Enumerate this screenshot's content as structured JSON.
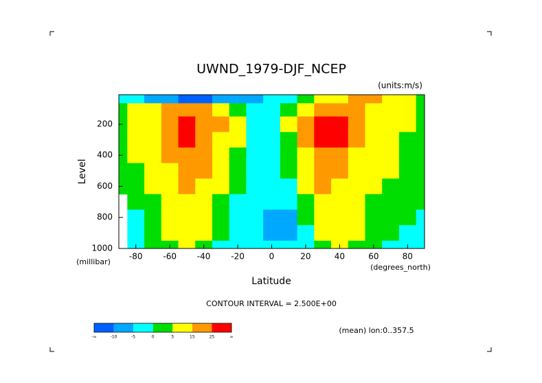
{
  "chart_data": {
    "type": "contour",
    "title": "UWND_1979-DJF_NCEP",
    "units_note": "(units:m/s)",
    "y_label": "Level",
    "y_units": "(millibar)",
    "x_label": "Latitude",
    "x_units": "(degrees_north)",
    "contour_note": "CONTOUR INTERVAL = 2.500E+00",
    "footnote": "(mean) lon:0..357.5",
    "xlim": [
      -90,
      90
    ],
    "ylim": [
      1000,
      10
    ],
    "xticks": [
      -80,
      -60,
      -40,
      -20,
      0,
      20,
      40,
      60,
      80
    ],
    "yticks": [
      200,
      400,
      600,
      800,
      1000
    ],
    "x": [
      -90,
      -80,
      -70,
      -60,
      -50,
      -40,
      -30,
      -20,
      -10,
      0,
      10,
      20,
      30,
      40,
      50,
      60,
      70,
      80,
      90
    ],
    "y": [
      30,
      100,
      200,
      300,
      400,
      500,
      600,
      700,
      800,
      900,
      1000
    ],
    "z": [
      [
        -2,
        -5,
        -8,
        -10,
        -12,
        -12,
        -10,
        -10,
        -8,
        -5,
        -2,
        0,
        5,
        10,
        15,
        15,
        10,
        5,
        2
      ],
      [
        2,
        5,
        10,
        15,
        18,
        15,
        10,
        2,
        -3,
        -2,
        2,
        10,
        20,
        18,
        15,
        10,
        8,
        5,
        2
      ],
      [
        3,
        6,
        12,
        20,
        27,
        22,
        15,
        5,
        -2,
        -1,
        5,
        18,
        32,
        28,
        18,
        12,
        8,
        5,
        2
      ],
      [
        3,
        6,
        12,
        20,
        27,
        22,
        14,
        5,
        -1,
        -1,
        4,
        16,
        30,
        26,
        17,
        11,
        7,
        4,
        2
      ],
      [
        2,
        5,
        10,
        17,
        23,
        19,
        11,
        3,
        -2,
        -2,
        2,
        12,
        24,
        21,
        14,
        9,
        6,
        3,
        2
      ],
      [
        2,
        4,
        8,
        14,
        19,
        15,
        8,
        1,
        -3,
        -3,
        0,
        9,
        19,
        17,
        12,
        8,
        5,
        3,
        1
      ],
      [
        1,
        3,
        6,
        11,
        16,
        12,
        5,
        0,
        -3,
        -4,
        -2,
        6,
        15,
        14,
        10,
        6,
        4,
        2,
        1
      ],
      [
        null,
        1,
        4,
        9,
        13,
        9,
        3,
        -1,
        -4,
        -5,
        -4,
        3,
        11,
        11,
        8,
        4,
        2,
        1,
        0
      ],
      [
        null,
        -1,
        2,
        7,
        10,
        7,
        1,
        -2,
        -5,
        -6,
        -6,
        0,
        8,
        9,
        6,
        3,
        1,
        0,
        -1
      ],
      [
        null,
        -2,
        0,
        5,
        8,
        5,
        0,
        -3,
        -5,
        -6,
        -7,
        -2,
        5,
        7,
        5,
        2,
        0,
        -1,
        -1
      ],
      [
        null,
        -2,
        0,
        3,
        6,
        3,
        -1,
        -3,
        -5,
        -5,
        -5,
        -3,
        2,
        5,
        4,
        1,
        -1,
        -2,
        -2
      ]
    ],
    "colorbar": {
      "levels": [
        -10,
        -5,
        0,
        5,
        15,
        25
      ],
      "end_labels": [
        "-∞",
        "∞"
      ],
      "colors": [
        "#0060ff",
        "#00a8ff",
        "#00ffff",
        "#00dd00",
        "#ffff00",
        "#ff9900",
        "#ff0000"
      ]
    }
  }
}
